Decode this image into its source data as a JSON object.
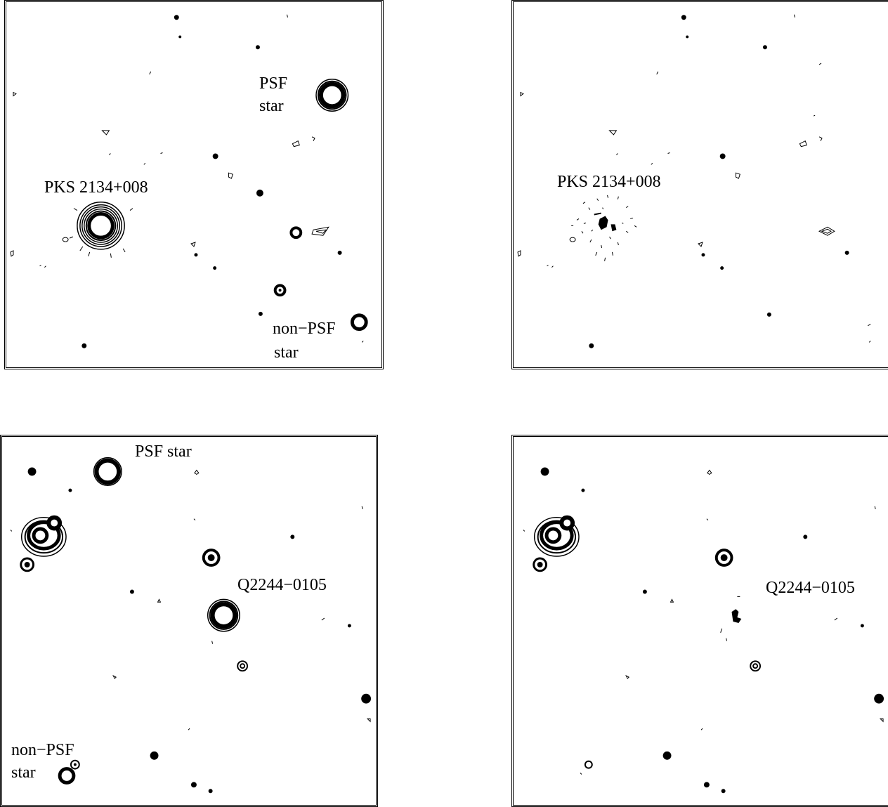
{
  "panels": [
    {
      "labels": {
        "target": "PKS 2134+008",
        "psf_line1": "PSF",
        "psf_line2": "star",
        "nonpsf_line1": "non−PSF",
        "nonpsf_line2": "star"
      }
    },
    {
      "labels": {
        "target": "PKS 2134+008"
      }
    },
    {
      "labels": {
        "psf": "PSF star",
        "target": "Q2244−0105",
        "nonpsf_line1": "non−PSF",
        "nonpsf_line2": "star"
      }
    },
    {
      "labels": {
        "target": "Q2244−0105"
      }
    }
  ],
  "colors": {
    "ink": "#000000",
    "background": "#ffffff"
  }
}
